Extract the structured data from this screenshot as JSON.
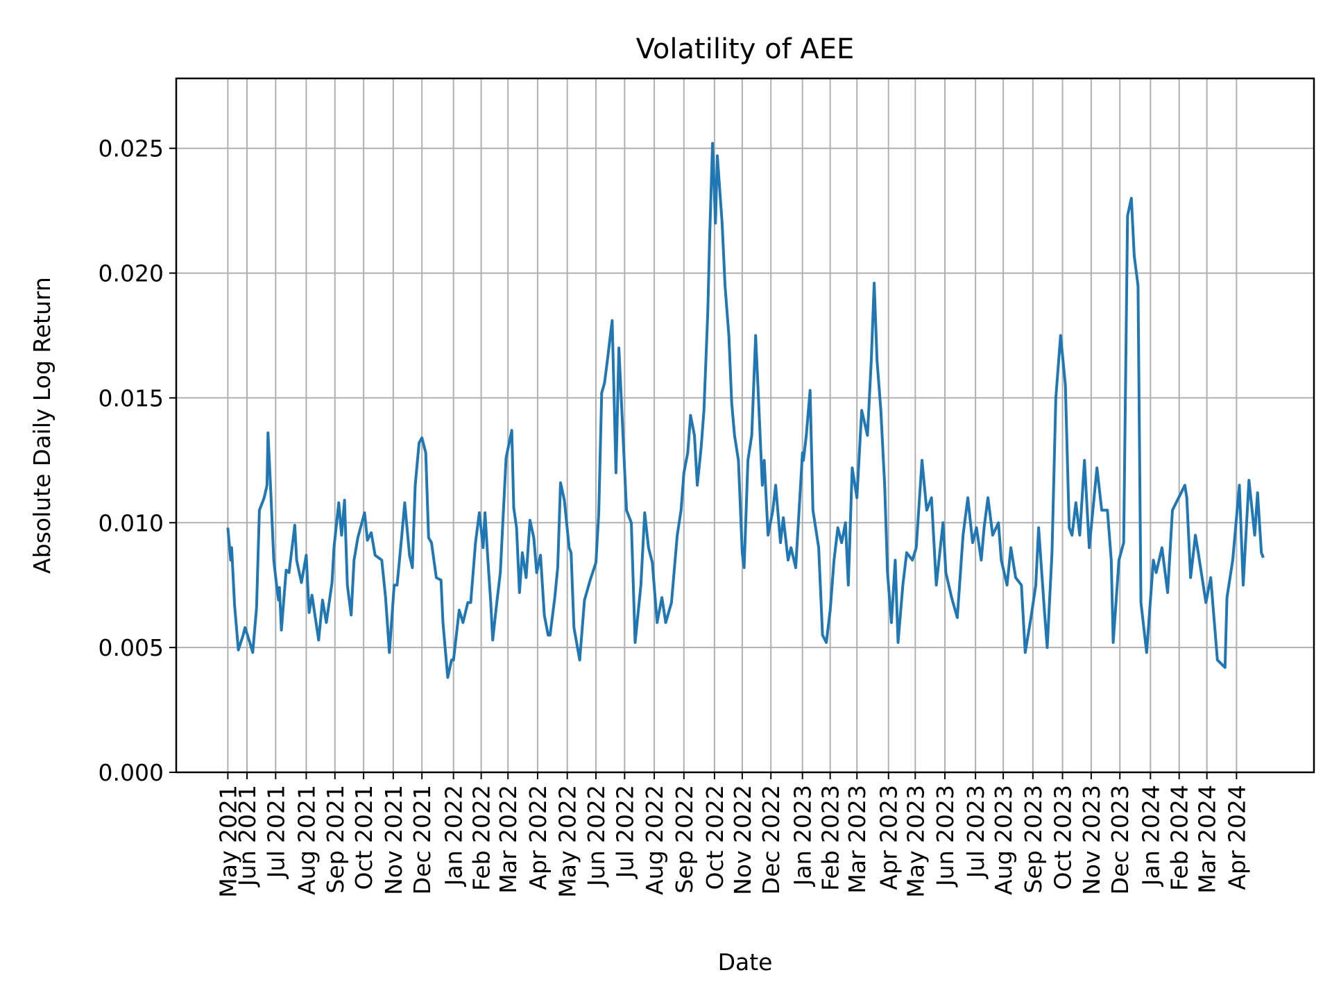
{
  "chart_data": {
    "type": "line",
    "title": "Volatility of AEE",
    "xlabel": "Date",
    "ylabel": "Absolute Daily Log Return",
    "ylim": [
      0,
      0.0278
    ],
    "xlim": [
      "2021-03-19",
      "2024-06-21"
    ],
    "grid": true,
    "line_color": "#1f77b4",
    "grid_color": "#b0b0b0",
    "yticks": [
      {
        "value": 0.0,
        "label": "0.000"
      },
      {
        "value": 0.005,
        "label": "0.005"
      },
      {
        "value": 0.01,
        "label": "0.010"
      },
      {
        "value": 0.015,
        "label": "0.015"
      },
      {
        "value": 0.02,
        "label": "0.020"
      },
      {
        "value": 0.025,
        "label": "0.025"
      }
    ],
    "xticks": [
      {
        "date": "2021-05-12",
        "label": "May 2021"
      },
      {
        "date": "2021-06-01",
        "label": "Jun 2021"
      },
      {
        "date": "2021-07-01",
        "label": "Jul 2021"
      },
      {
        "date": "2021-08-02",
        "label": "Aug 2021"
      },
      {
        "date": "2021-09-01",
        "label": "Sep 2021"
      },
      {
        "date": "2021-10-01",
        "label": "Oct 2021"
      },
      {
        "date": "2021-11-01",
        "label": "Nov 2021"
      },
      {
        "date": "2021-12-01",
        "label": "Dec 2021"
      },
      {
        "date": "2022-01-03",
        "label": "Jan 2022"
      },
      {
        "date": "2022-02-01",
        "label": "Feb 2022"
      },
      {
        "date": "2022-03-01",
        "label": "Mar 2022"
      },
      {
        "date": "2022-04-01",
        "label": "Apr 2022"
      },
      {
        "date": "2022-05-02",
        "label": "May 2022"
      },
      {
        "date": "2022-06-01",
        "label": "Jun 2022"
      },
      {
        "date": "2022-07-01",
        "label": "Jul 2022"
      },
      {
        "date": "2022-08-01",
        "label": "Aug 2022"
      },
      {
        "date": "2022-09-01",
        "label": "Sep 2022"
      },
      {
        "date": "2022-10-03",
        "label": "Oct 2022"
      },
      {
        "date": "2022-11-01",
        "label": "Nov 2022"
      },
      {
        "date": "2022-12-01",
        "label": "Dec 2022"
      },
      {
        "date": "2023-01-03",
        "label": "Jan 2023"
      },
      {
        "date": "2023-02-01",
        "label": "Feb 2023"
      },
      {
        "date": "2023-03-01",
        "label": "Mar 2023"
      },
      {
        "date": "2023-04-03",
        "label": "Apr 2023"
      },
      {
        "date": "2023-05-01",
        "label": "May 2023"
      },
      {
        "date": "2023-06-01",
        "label": "Jun 2023"
      },
      {
        "date": "2023-07-03",
        "label": "Jul 2023"
      },
      {
        "date": "2023-08-01",
        "label": "Aug 2023"
      },
      {
        "date": "2023-09-01",
        "label": "Sep 2023"
      },
      {
        "date": "2023-10-02",
        "label": "Oct 2023"
      },
      {
        "date": "2023-11-01",
        "label": "Nov 2023"
      },
      {
        "date": "2023-12-01",
        "label": "Dec 2023"
      },
      {
        "date": "2024-01-02",
        "label": "Jan 2024"
      },
      {
        "date": "2024-02-01",
        "label": "Feb 2024"
      },
      {
        "date": "2024-03-01",
        "label": "Mar 2024"
      },
      {
        "date": "2024-04-01",
        "label": "Apr 2024"
      }
    ],
    "points": [
      [
        "2021-05-12",
        0.0098
      ],
      [
        "2021-05-15",
        0.0085
      ],
      [
        "2021-05-16",
        0.009
      ],
      [
        "2021-05-19",
        0.0067
      ],
      [
        "2021-05-23",
        0.0049
      ],
      [
        "2021-05-28",
        0.0055
      ],
      [
        "2021-05-30",
        0.0058
      ],
      [
        "2021-06-04",
        0.0052
      ],
      [
        "2021-06-07",
        0.0048
      ],
      [
        "2021-06-11",
        0.0066
      ],
      [
        "2021-06-14",
        0.0105
      ],
      [
        "2021-06-19",
        0.011
      ],
      [
        "2021-06-22",
        0.0115
      ],
      [
        "2021-06-23",
        0.0136
      ],
      [
        "2021-06-26",
        0.0112
      ],
      [
        "2021-06-29",
        0.0085
      ],
      [
        "2021-07-02",
        0.0075
      ],
      [
        "2021-07-04",
        0.0069
      ],
      [
        "2021-07-05",
        0.0074
      ],
      [
        "2021-07-07",
        0.0057
      ],
      [
        "2021-07-12",
        0.0081
      ],
      [
        "2021-07-15",
        0.008
      ],
      [
        "2021-07-21",
        0.0099
      ],
      [
        "2021-07-23",
        0.0085
      ],
      [
        "2021-07-28",
        0.0076
      ],
      [
        "2021-08-02",
        0.0087
      ],
      [
        "2021-08-05",
        0.0064
      ],
      [
        "2021-08-08",
        0.0071
      ],
      [
        "2021-08-15",
        0.0053
      ],
      [
        "2021-08-19",
        0.0069
      ],
      [
        "2021-08-23",
        0.006
      ],
      [
        "2021-08-29",
        0.0076
      ],
      [
        "2021-08-31",
        0.009
      ],
      [
        "2021-09-05",
        0.0108
      ],
      [
        "2021-09-08",
        0.0095
      ],
      [
        "2021-09-11",
        0.0109
      ],
      [
        "2021-09-14",
        0.0075
      ],
      [
        "2021-09-18",
        0.0063
      ],
      [
        "2021-09-21",
        0.0085
      ],
      [
        "2021-09-25",
        0.0094
      ],
      [
        "2021-10-02",
        0.0104
      ],
      [
        "2021-10-05",
        0.0093
      ],
      [
        "2021-10-09",
        0.0096
      ],
      [
        "2021-10-13",
        0.0087
      ],
      [
        "2021-10-20",
        0.0085
      ],
      [
        "2021-10-24",
        0.007
      ],
      [
        "2021-10-28",
        0.0048
      ],
      [
        "2021-11-02",
        0.0075
      ],
      [
        "2021-11-05",
        0.0075
      ],
      [
        "2021-11-10",
        0.0095
      ],
      [
        "2021-11-13",
        0.0108
      ],
      [
        "2021-11-18",
        0.0087
      ],
      [
        "2021-11-21",
        0.0082
      ],
      [
        "2021-11-24",
        0.0115
      ],
      [
        "2021-11-28",
        0.0132
      ],
      [
        "2021-12-01",
        0.0134
      ],
      [
        "2021-12-05",
        0.0128
      ],
      [
        "2021-12-08",
        0.0094
      ],
      [
        "2021-12-11",
        0.0092
      ],
      [
        "2021-12-16",
        0.0078
      ],
      [
        "2021-12-21",
        0.0077
      ],
      [
        "2021-12-23",
        0.006
      ],
      [
        "2021-12-28",
        0.0038
      ],
      [
        "2022-01-01",
        0.0045
      ],
      [
        "2022-01-03",
        0.0045
      ],
      [
        "2022-01-09",
        0.0065
      ],
      [
        "2022-01-13",
        0.006
      ],
      [
        "2022-01-18",
        0.0068
      ],
      [
        "2022-01-21",
        0.0068
      ],
      [
        "2022-01-26",
        0.0092
      ],
      [
        "2022-01-30",
        0.0104
      ],
      [
        "2022-02-03",
        0.009
      ],
      [
        "2022-02-05",
        0.0104
      ],
      [
        "2022-02-08",
        0.0085
      ],
      [
        "2022-02-11",
        0.0068
      ],
      [
        "2022-02-13",
        0.0053
      ],
      [
        "2022-02-17",
        0.0067
      ],
      [
        "2022-02-21",
        0.008
      ],
      [
        "2022-02-27",
        0.0126
      ],
      [
        "2022-03-05",
        0.0137
      ],
      [
        "2022-03-07",
        0.0106
      ],
      [
        "2022-03-10",
        0.0098
      ],
      [
        "2022-03-13",
        0.0072
      ],
      [
        "2022-03-16",
        0.0088
      ],
      [
        "2022-03-20",
        0.0078
      ],
      [
        "2022-03-24",
        0.0101
      ],
      [
        "2022-03-28",
        0.0094
      ],
      [
        "2022-03-31",
        0.008
      ],
      [
        "2022-04-04",
        0.0087
      ],
      [
        "2022-04-08",
        0.0063
      ],
      [
        "2022-04-12",
        0.0055
      ],
      [
        "2022-04-14",
        0.0055
      ],
      [
        "2022-04-19",
        0.007
      ],
      [
        "2022-04-22",
        0.0082
      ],
      [
        "2022-04-25",
        0.0116
      ],
      [
        "2022-04-29",
        0.0109
      ],
      [
        "2022-05-04",
        0.009
      ],
      [
        "2022-05-06",
        0.0088
      ],
      [
        "2022-05-09",
        0.0058
      ],
      [
        "2022-05-15",
        0.0045
      ],
      [
        "2022-05-20",
        0.0069
      ],
      [
        "2022-05-26",
        0.0077
      ],
      [
        "2022-06-01",
        0.0084
      ],
      [
        "2022-06-04",
        0.0104
      ],
      [
        "2022-06-07",
        0.0152
      ],
      [
        "2022-06-10",
        0.0156
      ],
      [
        "2022-06-13",
        0.0165
      ],
      [
        "2022-06-18",
        0.0181
      ],
      [
        "2022-06-22",
        0.012
      ],
      [
        "2022-06-25",
        0.017
      ],
      [
        "2022-07-03",
        0.0105
      ],
      [
        "2022-07-08",
        0.01
      ],
      [
        "2022-07-12",
        0.0052
      ],
      [
        "2022-07-18",
        0.0075
      ],
      [
        "2022-07-22",
        0.0104
      ],
      [
        "2022-07-26",
        0.009
      ],
      [
        "2022-07-30",
        0.0084
      ],
      [
        "2022-08-04",
        0.006
      ],
      [
        "2022-08-09",
        0.007
      ],
      [
        "2022-08-13",
        0.006
      ],
      [
        "2022-08-19",
        0.0068
      ],
      [
        "2022-08-25",
        0.0095
      ],
      [
        "2022-08-29",
        0.0105
      ],
      [
        "2022-09-01",
        0.012
      ],
      [
        "2022-09-05",
        0.0128
      ],
      [
        "2022-09-08",
        0.0143
      ],
      [
        "2022-09-12",
        0.0135
      ],
      [
        "2022-09-15",
        0.0115
      ],
      [
        "2022-09-19",
        0.013
      ],
      [
        "2022-09-22",
        0.0145
      ],
      [
        "2022-09-26",
        0.0185
      ],
      [
        "2022-09-28",
        0.0215
      ],
      [
        "2022-10-01",
        0.0252
      ],
      [
        "2022-10-04",
        0.022
      ],
      [
        "2022-10-06",
        0.0247
      ],
      [
        "2022-10-11",
        0.022
      ],
      [
        "2022-10-14",
        0.0195
      ],
      [
        "2022-10-18",
        0.0175
      ],
      [
        "2022-10-21",
        0.0148
      ],
      [
        "2022-10-24",
        0.0135
      ],
      [
        "2022-10-28",
        0.0125
      ],
      [
        "2022-11-01",
        0.0088
      ],
      [
        "2022-11-03",
        0.0082
      ],
      [
        "2022-11-07",
        0.0125
      ],
      [
        "2022-11-11",
        0.0135
      ],
      [
        "2022-11-15",
        0.0175
      ],
      [
        "2022-11-18",
        0.015
      ],
      [
        "2022-11-22",
        0.0115
      ],
      [
        "2022-11-24",
        0.0125
      ],
      [
        "2022-11-28",
        0.0095
      ],
      [
        "2022-12-03",
        0.0105
      ],
      [
        "2022-12-06",
        0.0115
      ],
      [
        "2022-12-11",
        0.0092
      ],
      [
        "2022-12-14",
        0.0102
      ],
      [
        "2022-12-19",
        0.0085
      ],
      [
        "2022-12-22",
        0.009
      ],
      [
        "2022-12-27",
        0.0082
      ],
      [
        "2023-01-03",
        0.0128
      ],
      [
        "2023-01-04",
        0.0125
      ],
      [
        "2023-01-07",
        0.0135
      ],
      [
        "2023-01-11",
        0.0153
      ],
      [
        "2023-01-14",
        0.0105
      ],
      [
        "2023-01-20",
        0.009
      ],
      [
        "2023-01-24",
        0.0055
      ],
      [
        "2023-01-28",
        0.0052
      ],
      [
        "2023-02-01",
        0.0065
      ],
      [
        "2023-02-05",
        0.0085
      ],
      [
        "2023-02-09",
        0.0098
      ],
      [
        "2023-02-13",
        0.0092
      ],
      [
        "2023-02-17",
        0.01
      ],
      [
        "2023-02-20",
        0.0075
      ],
      [
        "2023-02-24",
        0.0122
      ],
      [
        "2023-03-01",
        0.011
      ],
      [
        "2023-03-06",
        0.0145
      ],
      [
        "2023-03-12",
        0.0135
      ],
      [
        "2023-03-16",
        0.0165
      ],
      [
        "2023-03-19",
        0.0196
      ],
      [
        "2023-03-22",
        0.0165
      ],
      [
        "2023-03-26",
        0.0145
      ],
      [
        "2023-03-30",
        0.0115
      ],
      [
        "2023-04-02",
        0.008
      ],
      [
        "2023-04-06",
        0.006
      ],
      [
        "2023-04-10",
        0.0085
      ],
      [
        "2023-04-13",
        0.0052
      ],
      [
        "2023-04-18",
        0.0075
      ],
      [
        "2023-04-22",
        0.0088
      ],
      [
        "2023-04-28",
        0.0085
      ],
      [
        "2023-05-02",
        0.009
      ],
      [
        "2023-05-08",
        0.0125
      ],
      [
        "2023-05-13",
        0.0105
      ],
      [
        "2023-05-18",
        0.011
      ],
      [
        "2023-05-23",
        0.0075
      ],
      [
        "2023-05-30",
        0.01
      ],
      [
        "2023-06-02",
        0.008
      ],
      [
        "2023-06-08",
        0.007
      ],
      [
        "2023-06-14",
        0.0062
      ],
      [
        "2023-06-20",
        0.0095
      ],
      [
        "2023-06-25",
        0.011
      ],
      [
        "2023-06-30",
        0.0092
      ],
      [
        "2023-07-04",
        0.0098
      ],
      [
        "2023-07-09",
        0.0085
      ],
      [
        "2023-07-12",
        0.0098
      ],
      [
        "2023-07-16",
        0.011
      ],
      [
        "2023-07-21",
        0.0095
      ],
      [
        "2023-07-27",
        0.01
      ],
      [
        "2023-07-30",
        0.0085
      ],
      [
        "2023-08-05",
        0.0075
      ],
      [
        "2023-08-09",
        0.009
      ],
      [
        "2023-08-14",
        0.0078
      ],
      [
        "2023-08-20",
        0.0075
      ],
      [
        "2023-08-24",
        0.0048
      ],
      [
        "2023-08-30",
        0.0062
      ],
      [
        "2023-09-04",
        0.0075
      ],
      [
        "2023-09-07",
        0.0098
      ],
      [
        "2023-09-13",
        0.0065
      ],
      [
        "2023-09-16",
        0.005
      ],
      [
        "2023-09-21",
        0.0088
      ],
      [
        "2023-09-25",
        0.015
      ],
      [
        "2023-09-30",
        0.0175
      ],
      [
        "2023-10-05",
        0.0155
      ],
      [
        "2023-10-09",
        0.0098
      ],
      [
        "2023-10-12",
        0.0095
      ],
      [
        "2023-10-16",
        0.0108
      ],
      [
        "2023-10-20",
        0.0095
      ],
      [
        "2023-10-25",
        0.0125
      ],
      [
        "2023-10-30",
        0.009
      ],
      [
        "2023-11-07",
        0.0122
      ],
      [
        "2023-11-12",
        0.0105
      ],
      [
        "2023-11-18",
        0.0105
      ],
      [
        "2023-11-22",
        0.0085
      ],
      [
        "2023-11-24",
        0.0052
      ],
      [
        "2023-11-30",
        0.0085
      ],
      [
        "2023-12-05",
        0.0092
      ],
      [
        "2023-12-09",
        0.0223
      ],
      [
        "2023-12-13",
        0.023
      ],
      [
        "2023-12-16",
        0.0207
      ],
      [
        "2023-12-20",
        0.0195
      ],
      [
        "2023-12-23",
        0.0068
      ],
      [
        "2023-12-29",
        0.0048
      ],
      [
        "2024-01-05",
        0.0085
      ],
      [
        "2024-01-08",
        0.008
      ],
      [
        "2024-01-14",
        0.009
      ],
      [
        "2024-01-20",
        0.0072
      ],
      [
        "2024-01-25",
        0.0105
      ],
      [
        "2024-02-07",
        0.0115
      ],
      [
        "2024-02-09",
        0.011
      ],
      [
        "2024-02-13",
        0.0078
      ],
      [
        "2024-02-18",
        0.0095
      ],
      [
        "2024-02-21",
        0.0088
      ],
      [
        "2024-02-29",
        0.0068
      ],
      [
        "2024-03-05",
        0.0078
      ],
      [
        "2024-03-12",
        0.0045
      ],
      [
        "2024-03-20",
        0.0042
      ],
      [
        "2024-03-22",
        0.007
      ],
      [
        "2024-03-28",
        0.0085
      ],
      [
        "2024-04-04",
        0.0115
      ],
      [
        "2024-04-08",
        0.0075
      ],
      [
        "2024-04-14",
        0.0117
      ],
      [
        "2024-04-20",
        0.0095
      ],
      [
        "2024-04-23",
        0.0112
      ],
      [
        "2024-04-27",
        0.0088
      ],
      [
        "2024-04-29",
        0.0086
      ]
    ]
  }
}
